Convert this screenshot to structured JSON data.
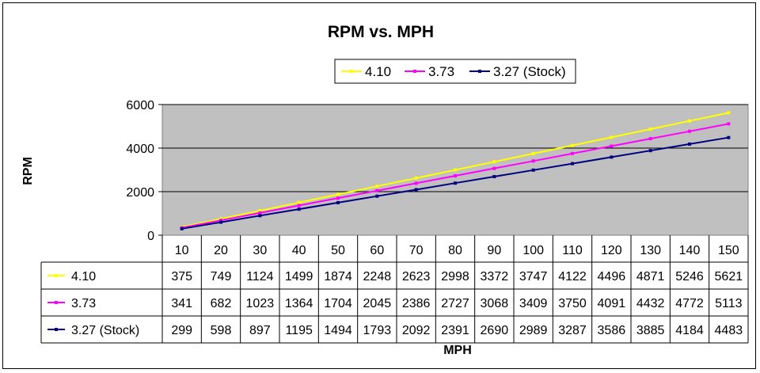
{
  "chart_data": {
    "type": "line",
    "title": "RPM vs. MPH",
    "xlabel": "MPH",
    "ylabel": "RPM",
    "ylim": [
      0,
      6000
    ],
    "yticks": [
      0,
      2000,
      4000,
      6000
    ],
    "grid": "horizontal",
    "legend_position": "top",
    "plot_background": "#c0c0c0",
    "x": [
      10,
      20,
      30,
      40,
      50,
      60,
      70,
      80,
      90,
      100,
      110,
      120,
      130,
      140,
      150
    ],
    "series": [
      {
        "name": "4.10",
        "color": "#ffff00",
        "values": [
          375,
          749,
          1124,
          1499,
          1874,
          2248,
          2623,
          2998,
          3372,
          3747,
          4122,
          4496,
          4871,
          5246,
          5621
        ]
      },
      {
        "name": "3.73",
        "color": "#ff00ff",
        "values": [
          341,
          682,
          1023,
          1364,
          1704,
          2045,
          2386,
          2727,
          3068,
          3409,
          3750,
          4091,
          4432,
          4772,
          5113
        ]
      },
      {
        "name": "3.27 (Stock)",
        "color": "#000080",
        "values": [
          299,
          598,
          897,
          1195,
          1494,
          1793,
          2092,
          2391,
          2690,
          2989,
          3287,
          3586,
          3885,
          4184,
          4483
        ]
      }
    ]
  }
}
